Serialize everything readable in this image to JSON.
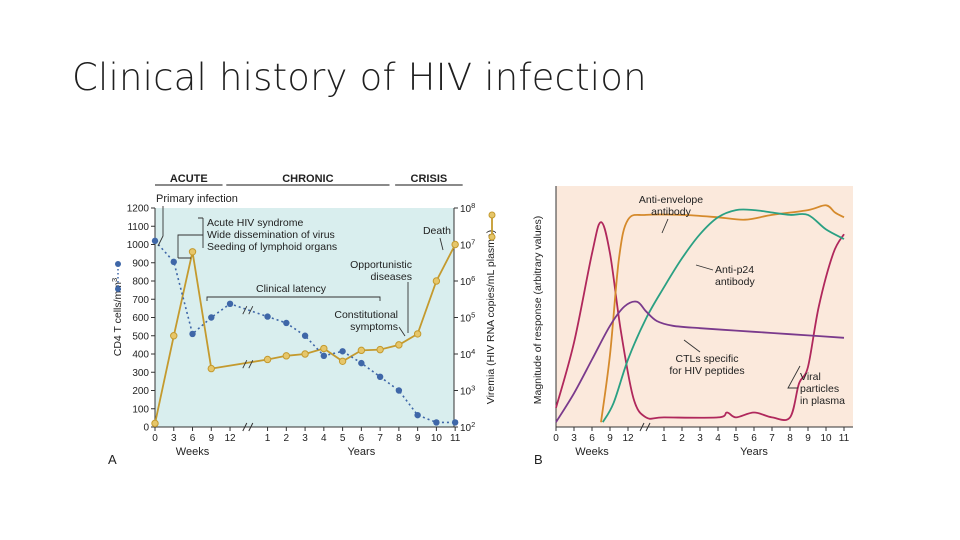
{
  "slide": {
    "title": "Clinical history of HIV infection"
  },
  "colors": {
    "panel_a_bg": "#d9eeee",
    "panel_b_bg": "#fbe9dc",
    "cd4": "#3f67a8",
    "viremia": "#c49a2e",
    "anti_envelope": "#d58a2c",
    "anti_p24": "#2aa083",
    "ctl": "#7a3a8c",
    "viral": "#b0285c"
  },
  "chart_data": [
    {
      "type": "line",
      "panel_label": "A",
      "phases": [
        {
          "name": "ACUTE",
          "x_from": 0,
          "x_to": 3.6
        },
        {
          "name": "CHRONIC",
          "x_from": 3.8,
          "x_to": 12.5
        },
        {
          "name": "CRISIS",
          "x_from": 12.8,
          "x_to": 16.4
        }
      ],
      "x_ticks": [
        {
          "label": "0",
          "x": 0
        },
        {
          "label": "3",
          "x": 1
        },
        {
          "label": "6",
          "x": 2
        },
        {
          "label": "9",
          "x": 3
        },
        {
          "label": "12",
          "x": 4
        },
        {
          "label": "1",
          "x": 6
        },
        {
          "label": "2",
          "x": 7
        },
        {
          "label": "3",
          "x": 8
        },
        {
          "label": "4",
          "x": 9
        },
        {
          "label": "5",
          "x": 10
        },
        {
          "label": "6",
          "x": 11
        },
        {
          "label": "7",
          "x": 12
        },
        {
          "label": "8",
          "x": 13
        },
        {
          "label": "9",
          "x": 14
        },
        {
          "label": "10",
          "x": 15
        },
        {
          "label": "11",
          "x": 16
        }
      ],
      "x_groups": [
        {
          "label": "Weeks",
          "x": 2
        },
        {
          "label": "Years",
          "x": 11
        }
      ],
      "x_break_at": 5,
      "y_left": {
        "label": "CD4 T cells/mm",
        "label_sup": "3",
        "range": [
          0,
          1200
        ],
        "ticks": [
          0,
          100,
          200,
          300,
          400,
          500,
          600,
          700,
          800,
          900,
          1000,
          1100,
          1200
        ]
      },
      "y_right": {
        "label": "Viremia (HIV RNA copies/mL plasma)",
        "scale": "log",
        "range_exponent": [
          2,
          8
        ],
        "ticks": [
          {
            "base": "10",
            "exp": "2"
          },
          {
            "base": "10",
            "exp": "3"
          },
          {
            "base": "10",
            "exp": "4"
          },
          {
            "base": "10",
            "exp": "5"
          },
          {
            "base": "10",
            "exp": "6"
          },
          {
            "base": "10",
            "exp": "7"
          },
          {
            "base": "10",
            "exp": "8"
          }
        ]
      },
      "series": [
        {
          "key": "cd4",
          "axis": "left",
          "style": "dotted",
          "points": [
            [
              0,
              1020
            ],
            [
              1,
              905
            ],
            [
              2,
              510
            ],
            [
              3,
              600
            ],
            [
              4,
              675
            ],
            [
              6,
              605
            ],
            [
              7,
              570
            ],
            [
              8,
              500
            ],
            [
              9,
              390
            ],
            [
              10,
              415
            ],
            [
              11,
              350
            ],
            [
              12,
              275
            ],
            [
              13,
              200
            ],
            [
              14,
              65
            ],
            [
              15,
              25
            ],
            [
              16,
              25
            ]
          ]
        },
        {
          "key": "viremia",
          "axis": "right",
          "style": "solid",
          "points": [
            [
              0,
              2.1
            ],
            [
              1,
              4.5
            ],
            [
              2,
              6.8
            ],
            [
              3,
              3.6
            ],
            [
              6,
              3.85
            ],
            [
              7,
              3.95
            ],
            [
              8,
              4.0
            ],
            [
              9,
              4.15
            ],
            [
              10,
              3.8
            ],
            [
              11,
              4.1
            ],
            [
              12,
              4.12
            ],
            [
              13,
              4.25
            ],
            [
              14,
              4.55
            ],
            [
              15,
              6.0
            ],
            [
              16,
              7.0
            ]
          ]
        }
      ],
      "annotations": {
        "primary_infection": "Primary infection",
        "acute_syndrome": [
          "Acute HIV syndrome",
          "Wide dissemination of virus",
          "Seeding of lymphoid organs"
        ],
        "clinical_latency": "Clinical latency",
        "constitutional": [
          "Constitutional",
          "symptoms"
        ],
        "opportunistic": [
          "Opportunistic",
          "diseases"
        ],
        "death": "Death"
      }
    },
    {
      "type": "line",
      "panel_label": "B",
      "x_ticks": [
        {
          "label": "0",
          "x": 0
        },
        {
          "label": "3",
          "x": 1
        },
        {
          "label": "6",
          "x": 2
        },
        {
          "label": "9",
          "x": 3
        },
        {
          "label": "12",
          "x": 4
        },
        {
          "label": "1",
          "x": 6
        },
        {
          "label": "2",
          "x": 7
        },
        {
          "label": "3",
          "x": 8
        },
        {
          "label": "4",
          "x": 9
        },
        {
          "label": "5",
          "x": 10
        },
        {
          "label": "6",
          "x": 11
        },
        {
          "label": "7",
          "x": 12
        },
        {
          "label": "8",
          "x": 13
        },
        {
          "label": "9",
          "x": 14
        },
        {
          "label": "10",
          "x": 15
        },
        {
          "label": "11",
          "x": 16
        }
      ],
      "x_groups": [
        {
          "label": "Weeks",
          "x": 2
        },
        {
          "label": "Years",
          "x": 11
        }
      ],
      "x_break_at": 5,
      "y_label": "Magnitude of response (arbitrary values)",
      "y_range": [
        0,
        100
      ],
      "series": [
        {
          "key": "viral",
          "name": "Viral particles in plasma",
          "points": [
            [
              0,
              8
            ],
            [
              1,
              35
            ],
            [
              2,
              72
            ],
            [
              2.5,
              85
            ],
            [
              3,
              72
            ],
            [
              3.6,
              40
            ],
            [
              4.3,
              12
            ],
            [
              5,
              4
            ],
            [
              6,
              4
            ],
            [
              9,
              4
            ],
            [
              9.5,
              6
            ],
            [
              10,
              4
            ],
            [
              11,
              6
            ],
            [
              12,
              4
            ],
            [
              13,
              4
            ],
            [
              13.5,
              18
            ],
            [
              14,
              25
            ],
            [
              14.6,
              50
            ],
            [
              15.4,
              72
            ],
            [
              16,
              80
            ]
          ]
        },
        {
          "key": "anti_envelope",
          "name": "Anti-envelope antibody",
          "points": [
            [
              2.5,
              2
            ],
            [
              3,
              30
            ],
            [
              3.5,
              70
            ],
            [
              4,
              86
            ],
            [
              5,
              88
            ],
            [
              7,
              88
            ],
            [
              9,
              87
            ],
            [
              10.5,
              86
            ],
            [
              12,
              88
            ],
            [
              14,
              90
            ],
            [
              15,
              92
            ],
            [
              15.5,
              89
            ],
            [
              16,
              87
            ]
          ]
        },
        {
          "key": "anti_p24",
          "name": "Anti-p24 antibody",
          "points": [
            [
              2.6,
              2
            ],
            [
              3.2,
              10
            ],
            [
              4,
              28
            ],
            [
              5,
              45
            ],
            [
              6,
              58
            ],
            [
              7,
              70
            ],
            [
              8,
              80
            ],
            [
              9,
              87
            ],
            [
              10,
              90
            ],
            [
              11,
              90
            ],
            [
              12,
              89
            ],
            [
              13,
              88
            ],
            [
              14,
              88
            ],
            [
              15,
              82
            ],
            [
              16,
              78
            ]
          ]
        },
        {
          "key": "ctl",
          "name": "CTLs specific for HIV peptides",
          "points": [
            [
              0,
              2
            ],
            [
              1,
              14
            ],
            [
              2,
              28
            ],
            [
              3,
              42
            ],
            [
              3.8,
              50
            ],
            [
              4.5,
              52
            ],
            [
              5,
              48
            ],
            [
              5.6,
              44
            ],
            [
              6.5,
              42
            ],
            [
              8,
              41
            ],
            [
              10,
              40
            ],
            [
              12,
              39
            ],
            [
              14,
              38
            ],
            [
              16,
              37
            ]
          ]
        }
      ],
      "labels": {
        "anti_envelope": [
          "Anti-envelope",
          "antibody"
        ],
        "anti_p24": [
          "Anti-p24",
          "antibody"
        ],
        "ctl": [
          "CTLs specific",
          "for HIV peptides"
        ],
        "viral": [
          "Viral",
          "particles",
          "in plasma"
        ]
      }
    }
  ]
}
